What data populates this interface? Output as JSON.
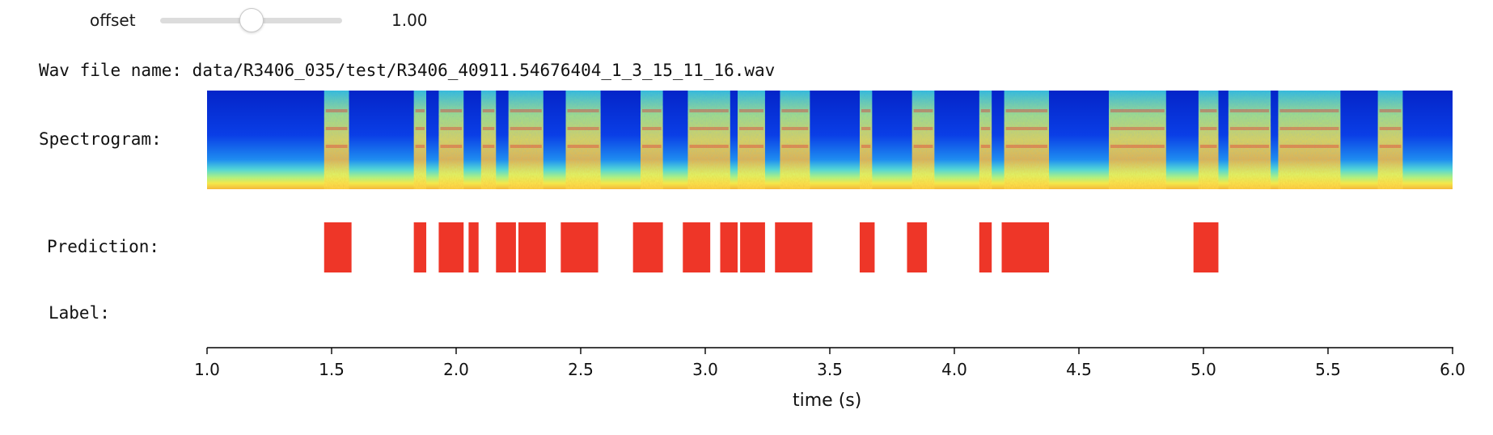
{
  "widget": {
    "description": "offset",
    "value": 1.0,
    "value_text": "1.00"
  },
  "wav_file": {
    "caption": "Wav file name:",
    "path": "data/R3406_035/test/R3406_40911.54676404_1_3_15_11_16.wav"
  },
  "rows": {
    "spectrogram": "Spectrogram:",
    "prediction": "Prediction:",
    "label": "Label:"
  },
  "chart_data": {
    "type": "bar",
    "xlabel": "time (s)",
    "xlim": [
      1.0,
      6.0
    ],
    "xticks": [
      "1.0",
      "1.5",
      "2.0",
      "2.5",
      "3.0",
      "3.5",
      "4.0",
      "4.5",
      "5.0",
      "5.5",
      "6.0"
    ],
    "grid": false,
    "colors": {
      "prediction": "#ee3628",
      "axis": "#000000",
      "spectrogram_low": "#0a2fd6",
      "spectrogram_high": "#e8402a"
    },
    "spectrogram_active_segments": [
      [
        1.47,
        1.57
      ],
      [
        1.83,
        1.88
      ],
      [
        1.93,
        2.03
      ],
      [
        2.1,
        2.16
      ],
      [
        2.21,
        2.35
      ],
      [
        2.44,
        2.58
      ],
      [
        2.74,
        2.83
      ],
      [
        2.93,
        3.1
      ],
      [
        3.13,
        3.24
      ],
      [
        3.3,
        3.42
      ],
      [
        3.62,
        3.67
      ],
      [
        3.83,
        3.92
      ],
      [
        4.1,
        4.15
      ],
      [
        4.2,
        4.38
      ],
      [
        4.62,
        4.85
      ],
      [
        4.98,
        5.06
      ],
      [
        5.1,
        5.27
      ],
      [
        5.3,
        5.55
      ],
      [
        5.7,
        5.8
      ]
    ],
    "prediction_segments": [
      [
        1.47,
        1.58
      ],
      [
        1.83,
        1.88
      ],
      [
        1.93,
        2.03
      ],
      [
        2.05,
        2.09
      ],
      [
        2.16,
        2.24
      ],
      [
        2.25,
        2.36
      ],
      [
        2.42,
        2.57
      ],
      [
        2.71,
        2.83
      ],
      [
        2.91,
        3.02
      ],
      [
        3.06,
        3.13
      ],
      [
        3.14,
        3.24
      ],
      [
        3.28,
        3.43
      ],
      [
        3.62,
        3.68
      ],
      [
        3.81,
        3.89
      ],
      [
        4.1,
        4.15
      ],
      [
        4.19,
        4.38
      ],
      [
        4.96,
        5.06
      ]
    ],
    "label_segments": []
  }
}
